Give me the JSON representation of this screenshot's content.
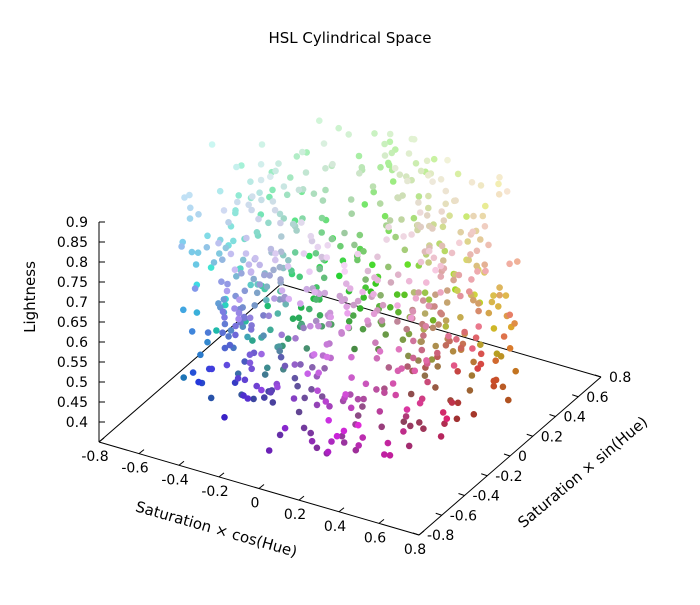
{
  "chart_data": {
    "type": "scatter3d",
    "title": "HSL Cylindrical Space",
    "xlabel": "Saturation × cos(Hue)",
    "ylabel": "Saturation × sin(Hue)",
    "zlabel": "Lightness",
    "xlim": [
      -0.8,
      0.8
    ],
    "ylim": [
      -0.8,
      0.8
    ],
    "zlim": [
      0.35,
      0.9
    ],
    "x_ticks": [
      "-0.8",
      "-0.6",
      "-0.4",
      "-0.2",
      "0",
      "0.2",
      "0.4",
      "0.6",
      "0.8"
    ],
    "y_ticks": [
      "-0.8",
      "-0.6",
      "-0.4",
      "-0.2",
      "0",
      "0.2",
      "0.4",
      "0.6",
      "0.8"
    ],
    "z_ticks": [
      "0.4",
      "0.45",
      "0.5",
      "0.55",
      "0.6",
      "0.65",
      "0.7",
      "0.75",
      "0.8",
      "0.85",
      "0.9"
    ],
    "x_tick_values": [
      -0.8,
      -0.6,
      -0.4,
      -0.2,
      0,
      0.2,
      0.4,
      0.6,
      0.8
    ],
    "y_tick_values": [
      -0.8,
      -0.6,
      -0.4,
      -0.2,
      0,
      0.2,
      0.4,
      0.6,
      0.8
    ],
    "z_tick_values": [
      0.4,
      0.45,
      0.5,
      0.55,
      0.6,
      0.65,
      0.7,
      0.75,
      0.8,
      0.85,
      0.9
    ],
    "point_count": 700,
    "saturation_range": [
      0.3,
      0.75
    ],
    "lightness_range": [
      0.4,
      0.9
    ],
    "grid": false,
    "legend": "none",
    "axis_color": "#000000"
  }
}
